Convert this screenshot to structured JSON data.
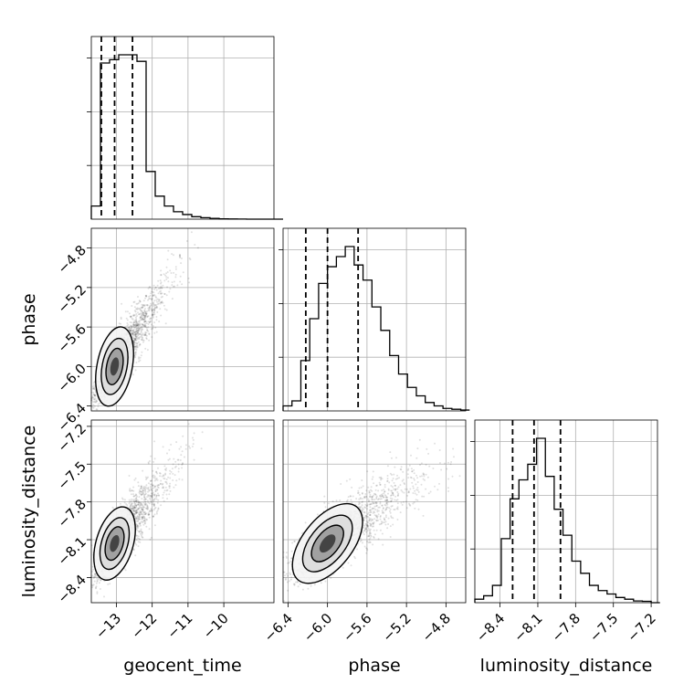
{
  "chart_data": {
    "type": "corner",
    "parameters": [
      "geocent_time",
      "phase",
      "luminosity_distance"
    ],
    "axis_labels": {
      "geocent_time": "geocent_time",
      "phase": "phase",
      "luminosity_distance": "luminosity_distance"
    },
    "ranges": {
      "geocent_time": [
        -13.7,
        -8.6
      ],
      "phase": [
        -6.45,
        -4.6
      ],
      "luminosity_distance": [
        -8.6,
        -7.15
      ]
    },
    "ticks": {
      "geocent_time": [
        {
          "value": -13,
          "label": "−13"
        },
        {
          "value": -12,
          "label": "−12"
        },
        {
          "value": -11,
          "label": "−11"
        },
        {
          "value": -10,
          "label": "−10"
        }
      ],
      "phase": [
        {
          "value": -6.4,
          "label": "−6.4"
        },
        {
          "value": -6.0,
          "label": "−6.0"
        },
        {
          "value": -5.6,
          "label": "−5.6"
        },
        {
          "value": -5.2,
          "label": "−5.2"
        },
        {
          "value": -4.8,
          "label": "−4.8"
        }
      ],
      "luminosity_distance": [
        {
          "value": -8.4,
          "label": "−8.4"
        },
        {
          "value": -8.1,
          "label": "−8.1"
        },
        {
          "value": -7.8,
          "label": "−7.8"
        },
        {
          "value": -7.5,
          "label": "−7.5"
        },
        {
          "value": -7.2,
          "label": "−7.2"
        }
      ]
    },
    "histograms": {
      "geocent_time": {
        "bin_start": -13.7,
        "bin_width": 0.255,
        "counts": [
          0.08,
          0.95,
          0.97,
          1.0,
          1.0,
          0.96,
          0.29,
          0.14,
          0.08,
          0.045,
          0.028,
          0.015,
          0.009,
          0.005,
          0.002,
          0.001,
          0.0005,
          0.0002,
          0.0001,
          0.0,
          0.0
        ],
        "quantiles": [
          -13.42,
          -13.05,
          -12.55
        ]
      },
      "phase": {
        "bin_start": -6.45,
        "bin_width": 0.09,
        "counts": [
          0.03,
          0.06,
          0.3,
          0.55,
          0.76,
          0.86,
          0.92,
          0.98,
          0.87,
          0.78,
          0.62,
          0.48,
          0.33,
          0.22,
          0.14,
          0.09,
          0.05,
          0.03,
          0.015,
          0.01,
          0.005
        ],
        "quantiles": [
          -6.22,
          -6.0,
          -5.69
        ]
      },
      "luminosity_distance": {
        "bin_start": -8.6,
        "bin_width": 0.07,
        "counts": [
          0.02,
          0.04,
          0.1,
          0.37,
          0.6,
          0.71,
          0.8,
          0.95,
          0.73,
          0.54,
          0.39,
          0.24,
          0.17,
          0.1,
          0.07,
          0.05,
          0.03,
          0.02,
          0.01,
          0.008,
          0.0
        ],
        "quantiles": [
          -8.3,
          -8.13,
          -7.92
        ]
      }
    },
    "correlations": {
      "phase_vs_geocent_time": 0.9,
      "luminosity_distance_vs_geocent_time": 0.85,
      "luminosity_distance_vs_phase": 0.82
    },
    "grid": true
  }
}
